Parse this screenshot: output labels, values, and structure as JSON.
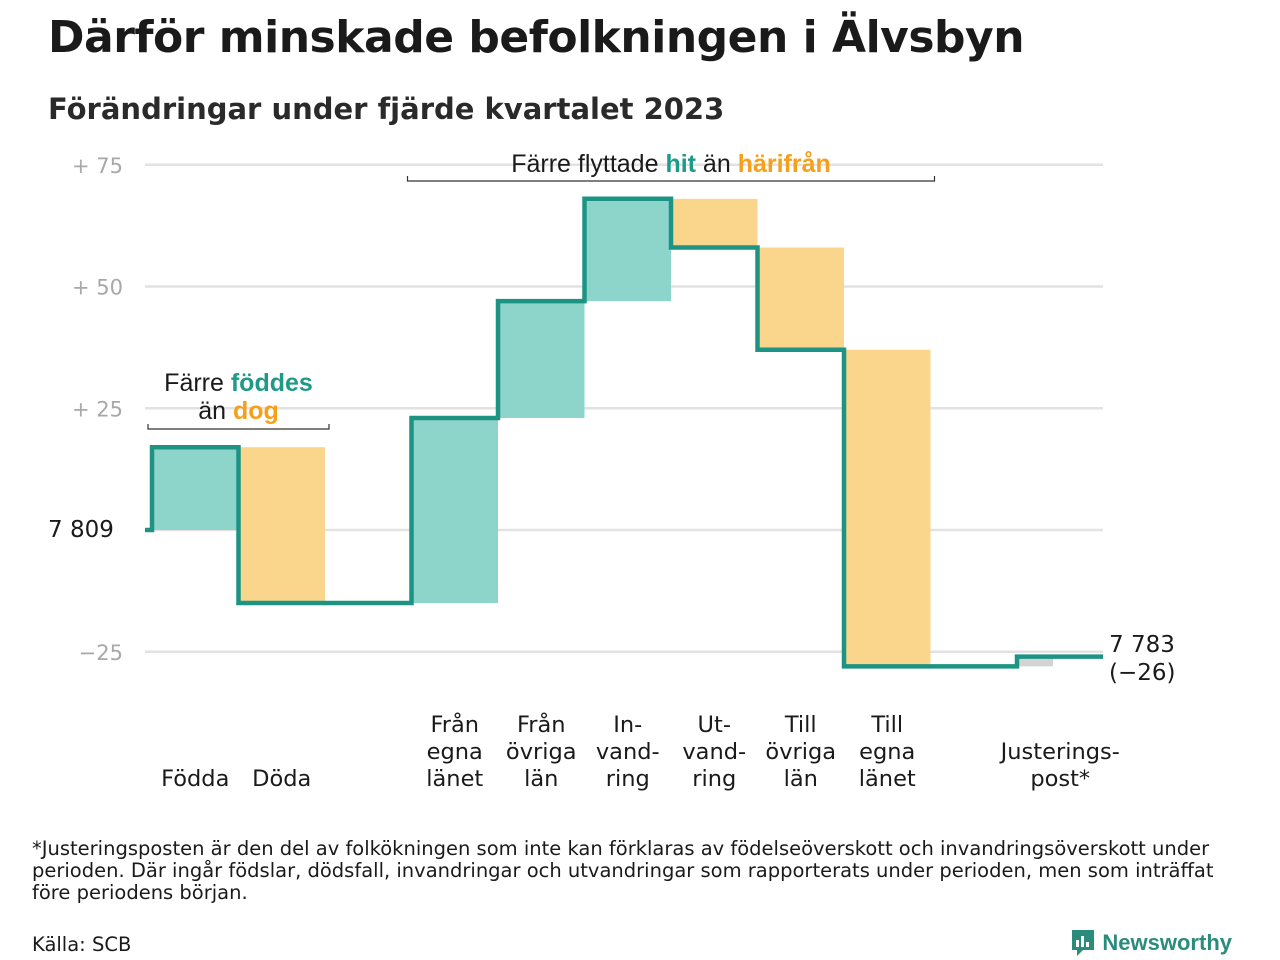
{
  "header": {
    "title": "Därför minskade befolkningen i Älvsbyn",
    "subtitle": "Förändringar under fjärde kvartalet 2023"
  },
  "chart_data": {
    "type": "waterfall",
    "start_value": 7809,
    "start_label": "7  809",
    "end_value": 7783,
    "end_label_value": "7 783",
    "end_label_change": "(−26)",
    "y_axis": {
      "range": [
        -30,
        78
      ],
      "ticks": [
        {
          "value": 75,
          "label": "+  75"
        },
        {
          "value": 50,
          "label": "+  50"
        },
        {
          "value": 25,
          "label": "+  25"
        },
        {
          "value": 0,
          "label": ""
        },
        {
          "value": -25,
          "label": "−25"
        }
      ],
      "grid": true
    },
    "steps": [
      {
        "category": "Födda",
        "label_lines": [
          "Födda"
        ],
        "value": 17,
        "kind": "in"
      },
      {
        "category": "Döda",
        "label_lines": [
          "Döda"
        ],
        "value": -32,
        "kind": "out"
      },
      {
        "category": "",
        "label_lines": [],
        "value": 0,
        "kind": "gap"
      },
      {
        "category": "Från egna länet",
        "label_lines": [
          "Från",
          "egna",
          "länet"
        ],
        "value": 38,
        "kind": "in"
      },
      {
        "category": "Från övriga län",
        "label_lines": [
          "Från",
          "övriga",
          "län"
        ],
        "value": 24,
        "kind": "in"
      },
      {
        "category": "Invandring",
        "label_lines": [
          "In-",
          "vand-",
          "ring"
        ],
        "value": 21,
        "kind": "in"
      },
      {
        "category": "Utvandring",
        "label_lines": [
          "Ut-",
          "vand-",
          "ring"
        ],
        "value": -10,
        "kind": "out"
      },
      {
        "category": "Till övriga län",
        "label_lines": [
          "Till",
          "övriga",
          "län"
        ],
        "value": -21,
        "kind": "out"
      },
      {
        "category": "Till egna länet",
        "label_lines": [
          "Till",
          "egna",
          "länet"
        ],
        "value": -65,
        "kind": "out"
      },
      {
        "category": "",
        "label_lines": [],
        "value": 0,
        "kind": "gap"
      },
      {
        "category": "Justeringspost*",
        "label_lines": [
          "Justerings-",
          "post*"
        ],
        "value": 2,
        "kind": "adjust"
      }
    ],
    "annotations": [
      {
        "id": "births-deaths",
        "line1_parts": [
          {
            "text": "Färre ",
            "kind": "plain"
          },
          {
            "text": "föddes",
            "kind": "in"
          }
        ],
        "line2_parts": [
          {
            "text": "än ",
            "kind": "plain"
          },
          {
            "text": "dog",
            "kind": "out"
          }
        ],
        "from_step": 0,
        "to_step": 1
      },
      {
        "id": "migration",
        "line1_parts": [
          {
            "text": "Färre flyttade ",
            "kind": "plain"
          },
          {
            "text": "hit",
            "kind": "in"
          },
          {
            "text": "  än ",
            "kind": "plain"
          },
          {
            "text": "härifrån",
            "kind": "out"
          }
        ],
        "line2_parts": [],
        "from_step": 3,
        "to_step": 8
      }
    ],
    "colors": {
      "in": "#8dd5cb",
      "out": "#fad68c",
      "adjust": "#d3d3d3",
      "line": "#1d9384",
      "in_text": "#1f9a89",
      "out_text": "#f5a01a",
      "grid": "#e2e2e2",
      "tick_text": "#a8a8a8"
    }
  },
  "footnote": "*Justeringsposten är den del av folkökningen som inte kan förklaras av födelseöverskott och invandringsöverskott under perioden. Där ingår födslar, dödsfall, invandringar och utvandringar som rapporterats under perioden, men som inträffat före periodens början.",
  "source": "Källa: SCB",
  "brand": {
    "name": "Newsworthy",
    "icon": "newsworthy-logo-icon"
  }
}
